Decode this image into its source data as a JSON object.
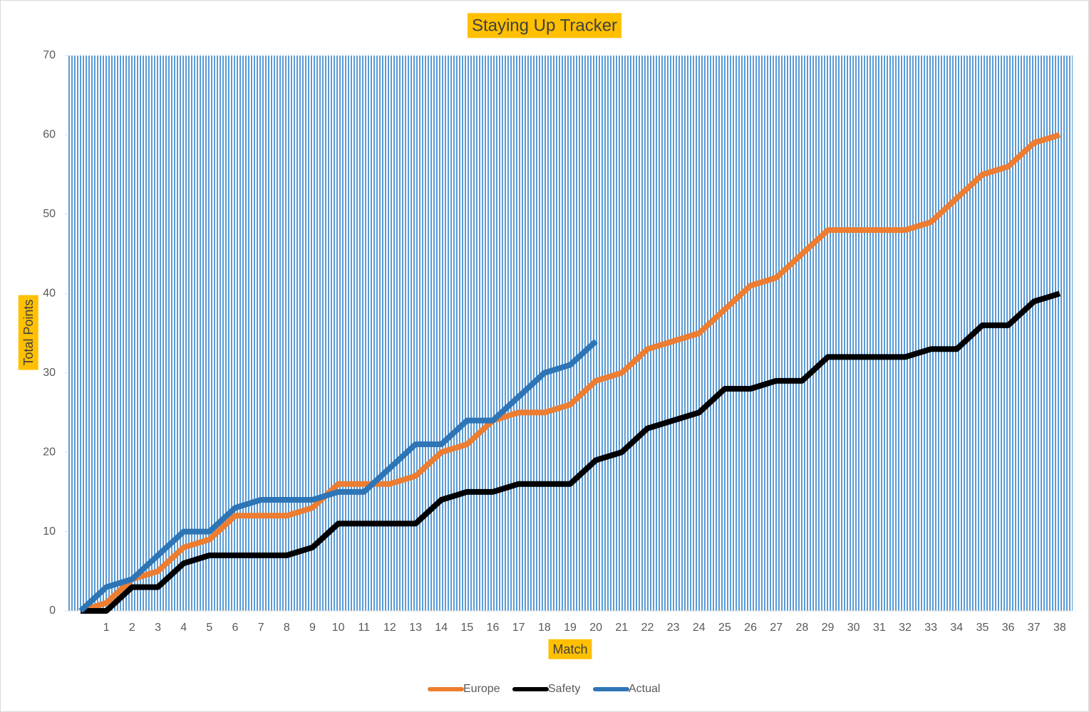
{
  "chart_data": {
    "type": "line",
    "title": "Staying Up Tracker",
    "x_label": "Match",
    "y_label": "Total Points",
    "categories": [
      null,
      "1",
      "2",
      "3",
      "4",
      "5",
      "6",
      "7",
      "8",
      "9",
      "10",
      "11",
      "12",
      "13",
      "14",
      "15",
      "16",
      "17",
      "18",
      "19",
      "20",
      "21",
      "22",
      "23",
      "24",
      "25",
      "26",
      "27",
      "28",
      "29",
      "30",
      "31",
      "32",
      "33",
      "34",
      "35",
      "36",
      "37",
      "38"
    ],
    "series": [
      {
        "name": "Europe",
        "color": "#ed7d31",
        "values": [
          0,
          1,
          4,
          5,
          8,
          9,
          12,
          12,
          12,
          13,
          16,
          16,
          16,
          17,
          20,
          21,
          24,
          25,
          25,
          26,
          29,
          30,
          33,
          34,
          35,
          38,
          41,
          42,
          45,
          48,
          48,
          48,
          48,
          49,
          52,
          55,
          56,
          59,
          60
        ]
      },
      {
        "name": "Safety",
        "color": "#000000",
        "values": [
          0,
          0,
          3,
          3,
          6,
          7,
          7,
          7,
          7,
          8,
          11,
          11,
          11,
          11,
          14,
          15,
          15,
          16,
          16,
          16,
          19,
          20,
          23,
          24,
          25,
          28,
          28,
          29,
          29,
          32,
          32,
          32,
          32,
          33,
          33,
          36,
          36,
          39,
          40
        ]
      },
      {
        "name": "Actual",
        "color": "#2e75b6",
        "values": [
          0,
          3,
          4,
          7,
          10,
          10,
          13,
          14,
          14,
          14,
          15,
          15,
          18,
          21,
          21,
          24,
          24,
          27,
          30,
          31,
          34,
          null,
          null,
          null,
          null,
          null,
          null,
          null,
          null,
          null,
          null,
          null,
          null,
          null,
          null,
          null,
          null,
          null,
          null
        ]
      }
    ],
    "ylim": [
      0,
      70
    ],
    "yticks": [
      0,
      10,
      20,
      30,
      40,
      50,
      60,
      70
    ],
    "legend": "bottom",
    "label_highlight": "#ffc000",
    "plot_pattern": "#5b9bd5"
  }
}
